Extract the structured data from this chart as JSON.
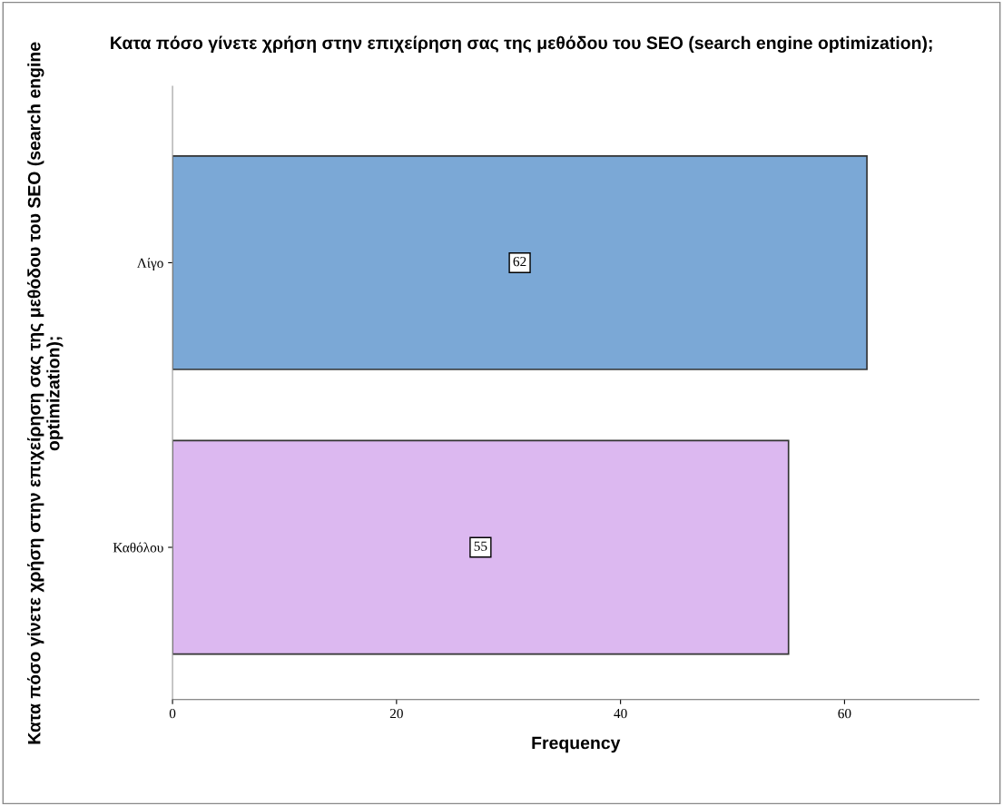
{
  "chart_data": {
    "type": "bar",
    "orientation": "horizontal",
    "title": "Κατα πόσο γίνετε χρήση στην επιχείρηση σας της μεθόδου του SEO (search engine optimization);",
    "ylabel": "Κατα πόσο γίνετε χρήση στην επιχείρηση σας της μεθόδου του SEO (search engine optimization);",
    "xlabel": "Frequency",
    "categories": [
      "Λίγο",
      "Καθόλου"
    ],
    "values": [
      62,
      55
    ],
    "colors": [
      "#7ba8d6",
      "#dcb8f0"
    ],
    "xlim": [
      0,
      72
    ],
    "xticks": [
      0,
      20,
      40,
      60
    ],
    "data_labels": true,
    "grid": false,
    "legend": false
  }
}
